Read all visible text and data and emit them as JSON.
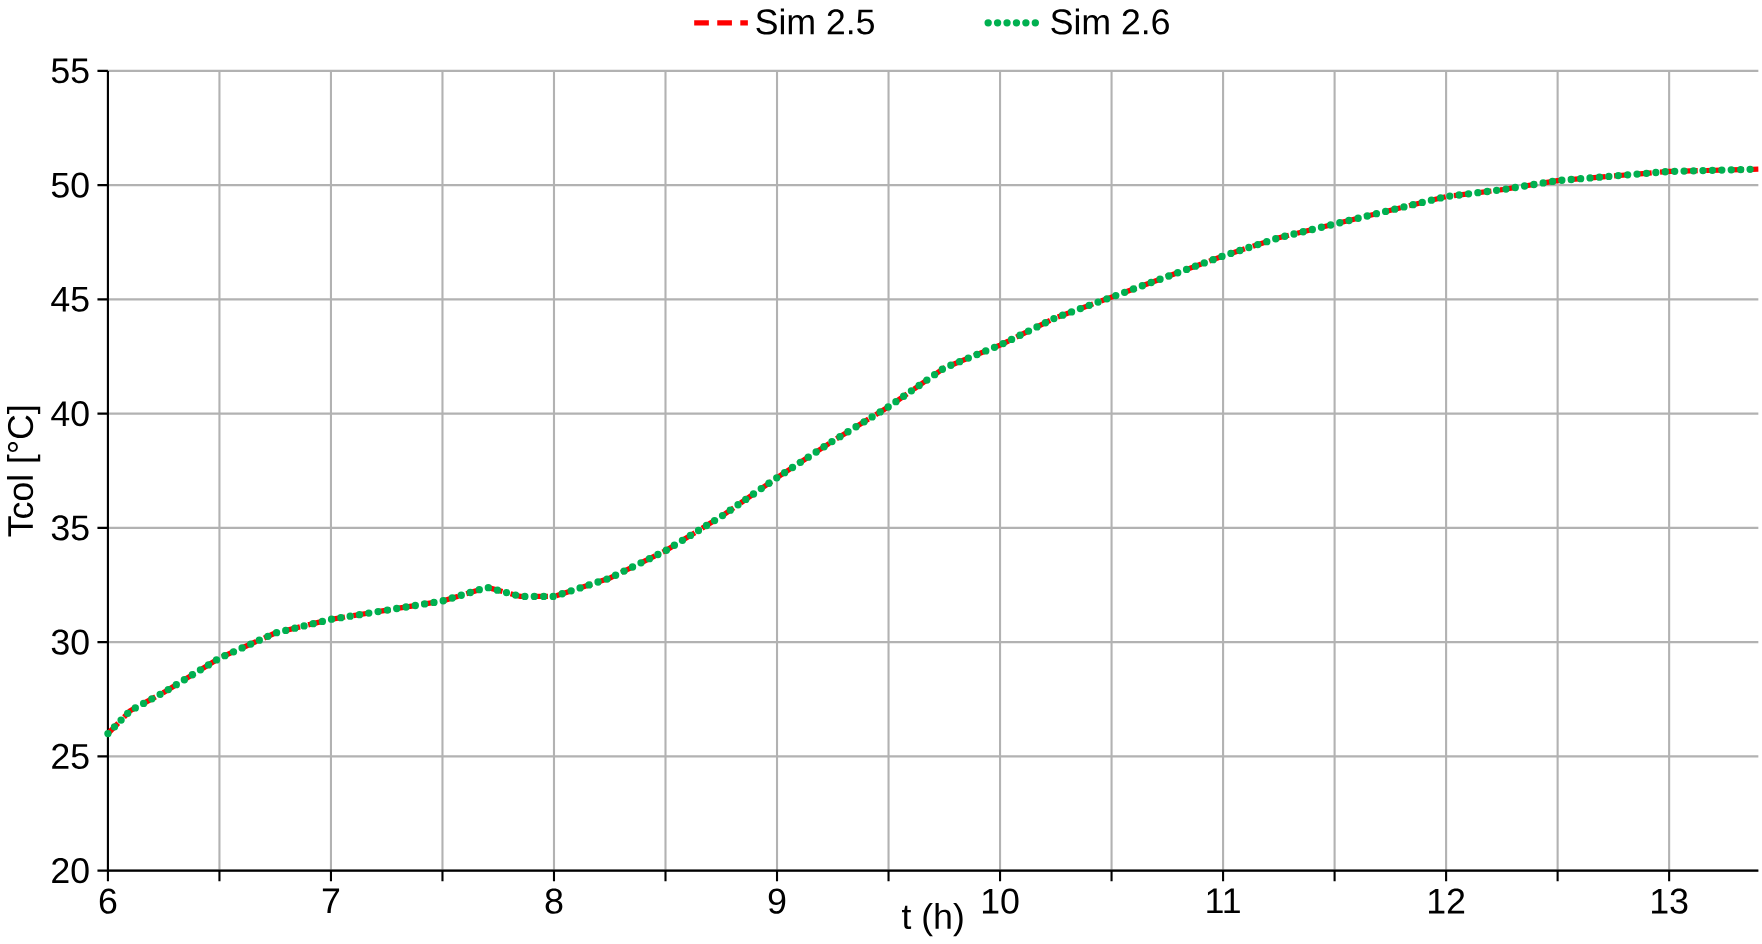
{
  "chart_data": {
    "type": "line",
    "xlabel": "t (h)",
    "ylabel": "Tcol [°C]",
    "x": [
      6.0,
      6.1,
      6.25,
      6.5,
      6.75,
      7.0,
      7.25,
      7.5,
      7.7,
      7.85,
      8.0,
      8.25,
      8.5,
      8.75,
      9.0,
      9.25,
      9.5,
      9.75,
      10.0,
      10.25,
      10.5,
      10.75,
      11.0,
      11.25,
      11.5,
      11.75,
      12.0,
      12.25,
      12.5,
      12.75,
      13.0,
      13.4
    ],
    "series": [
      {
        "name": "Sim 2.5",
        "color": "#ff0000",
        "line_style": "dashed",
        "values": [
          26.0,
          27.0,
          27.8,
          29.3,
          30.4,
          31.0,
          31.4,
          31.8,
          32.4,
          32.0,
          32.0,
          32.8,
          34.0,
          35.5,
          37.2,
          38.8,
          40.3,
          42.0,
          43.0,
          44.2,
          45.1,
          46.0,
          46.9,
          47.7,
          48.3,
          48.9,
          49.5,
          49.8,
          50.2,
          50.4,
          50.6,
          50.7
        ]
      },
      {
        "name": "Sim 2.6",
        "color": "#00b050",
        "line_style": "dotted",
        "values": [
          26.0,
          27.0,
          27.8,
          29.3,
          30.4,
          31.0,
          31.4,
          31.8,
          32.4,
          32.0,
          32.0,
          32.8,
          34.0,
          35.5,
          37.2,
          38.8,
          40.3,
          42.0,
          43.0,
          44.2,
          45.1,
          46.0,
          46.9,
          47.7,
          48.3,
          48.9,
          49.5,
          49.8,
          50.2,
          50.4,
          50.6,
          50.7
        ]
      }
    ],
    "xlim": [
      6,
      13.4
    ],
    "ylim": [
      20,
      55
    ],
    "xticks": [
      6,
      {
        "value": 6.5,
        "label": null
      },
      7,
      {
        "value": 7.5,
        "label": null
      },
      8,
      {
        "value": 8.5,
        "label": null
      },
      9,
      {
        "value": 9.5,
        "label": null
      },
      10,
      {
        "value": 10.5,
        "label": null
      },
      11,
      {
        "value": 11.5,
        "label": null
      },
      12,
      {
        "value": 12.5,
        "label": null
      },
      13
    ],
    "yticks": [
      20,
      25,
      30,
      35,
      40,
      45,
      50,
      55
    ],
    "grid": true,
    "legend": "top",
    "marker": "none"
  }
}
